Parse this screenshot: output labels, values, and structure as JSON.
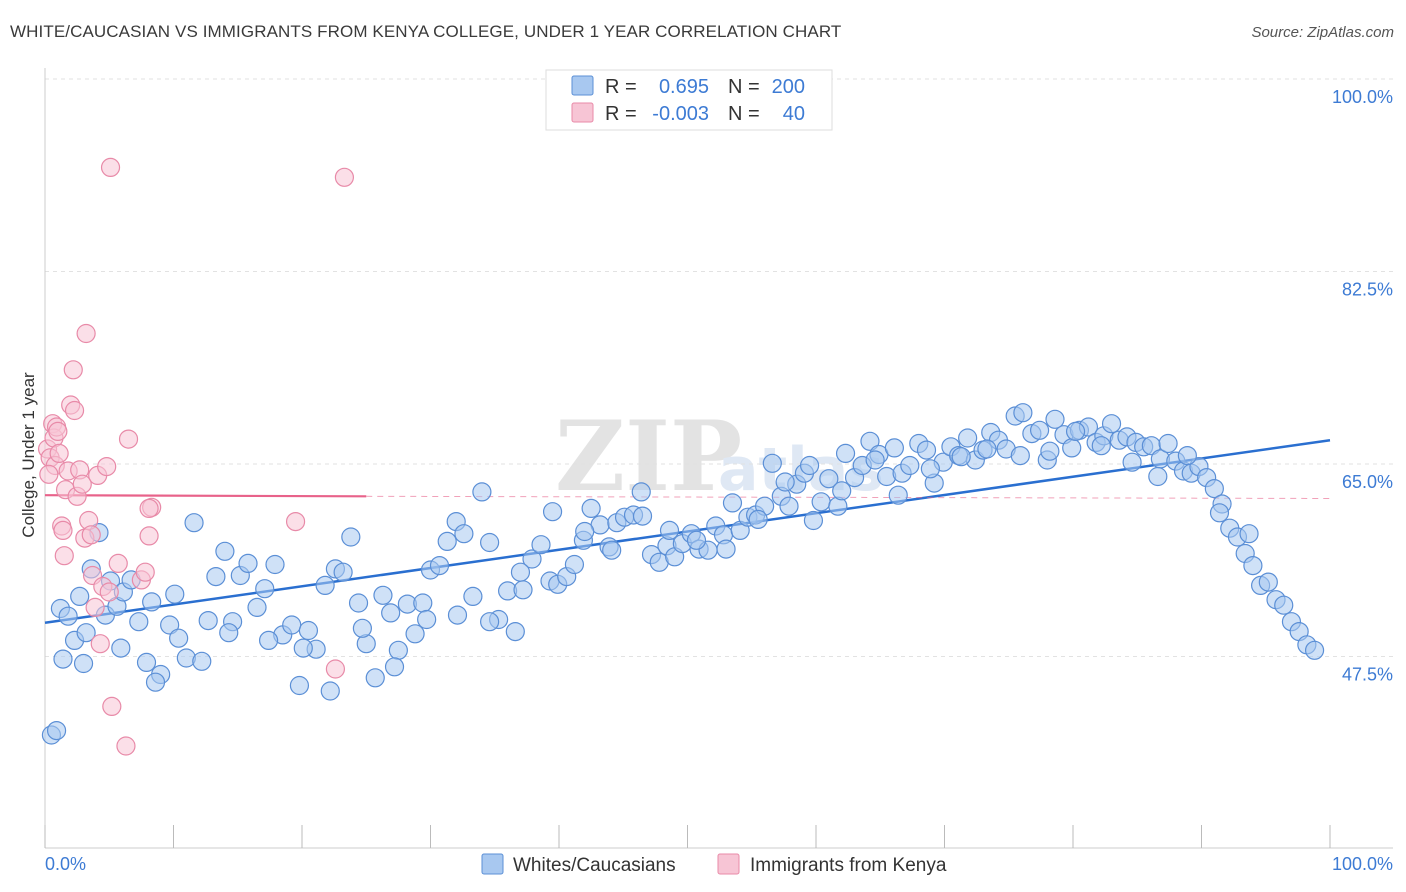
{
  "title": "WHITE/CAUCASIAN VS IMMIGRANTS FROM KENYA COLLEGE, UNDER 1 YEAR CORRELATION CHART",
  "source": "Source: ZipAtlas.com",
  "watermark": {
    "zip": "ZIP",
    "atlas": "atlas"
  },
  "colors": {
    "blue_fill": "#a8c8f0",
    "blue_stroke": "#5b8fd6",
    "blue_line": "#2a6fd0",
    "pink_fill": "#f7c5d5",
    "pink_stroke": "#e88aa8",
    "pink_line": "#e8628a",
    "axis_label": "#3d7bd4",
    "grid": "#e2e2e2"
  },
  "legend": {
    "rows": [
      {
        "r_label": "R =",
        "r_value": "0.695",
        "n_label": "N =",
        "n_value": "200",
        "series": "blue"
      },
      {
        "r_label": "R =",
        "r_value": "-0.003",
        "n_label": "N =",
        "n_value": "40",
        "series": "pink"
      }
    ]
  },
  "bottom_legend": [
    {
      "label": "Whites/Caucasians",
      "series": "blue"
    },
    {
      "label": "Immigrants from Kenya",
      "series": "pink"
    }
  ],
  "chart_data": {
    "type": "scatter",
    "title": "WHITE/CAUCASIAN VS IMMIGRANTS FROM KENYA COLLEGE, UNDER 1 YEAR CORRELATION CHART",
    "xlabel": "",
    "ylabel": "College, Under 1 year",
    "xlim": [
      0,
      100
    ],
    "ylim": [
      31.5,
      102
    ],
    "x_tick_labels": [
      "0.0%",
      "100.0%"
    ],
    "y_ticks": [
      47.5,
      65.0,
      82.5,
      100.0
    ],
    "y_tick_labels": [
      "47.5%",
      "65.0%",
      "82.5%",
      "100.0%"
    ],
    "grid": true,
    "series": [
      {
        "name": "Whites/Caucasians",
        "color": "blue",
        "trend": {
          "x": [
            0,
            100
          ],
          "y": [
            52.2,
            68.8
          ]
        },
        "points": [
          [
            0.5,
            42.0
          ],
          [
            0.9,
            42.4
          ],
          [
            1.2,
            53.5
          ],
          [
            1.8,
            52.8
          ],
          [
            2.3,
            50.6
          ],
          [
            2.7,
            54.6
          ],
          [
            3.2,
            51.3
          ],
          [
            3.6,
            57.1
          ],
          [
            4.2,
            60.4
          ],
          [
            4.7,
            52.9
          ],
          [
            5.1,
            56.0
          ],
          [
            5.6,
            53.7
          ],
          [
            6.1,
            55.0
          ],
          [
            6.7,
            56.1
          ],
          [
            7.3,
            52.3
          ],
          [
            7.9,
            48.6
          ],
          [
            8.3,
            54.1
          ],
          [
            9.0,
            47.5
          ],
          [
            9.7,
            52.0
          ],
          [
            10.4,
            50.8
          ],
          [
            11.0,
            49.0
          ],
          [
            11.6,
            61.3
          ],
          [
            12.2,
            48.7
          ],
          [
            12.7,
            52.4
          ],
          [
            13.3,
            56.4
          ],
          [
            14.0,
            58.7
          ],
          [
            14.6,
            52.3
          ],
          [
            15.2,
            56.5
          ],
          [
            15.8,
            57.6
          ],
          [
            16.5,
            53.6
          ],
          [
            17.1,
            55.3
          ],
          [
            17.9,
            57.5
          ],
          [
            18.5,
            51.1
          ],
          [
            19.2,
            52.0
          ],
          [
            19.8,
            46.5
          ],
          [
            20.5,
            51.5
          ],
          [
            21.1,
            49.8
          ],
          [
            21.8,
            55.6
          ],
          [
            22.6,
            57.1
          ],
          [
            23.2,
            56.8
          ],
          [
            23.8,
            60.0
          ],
          [
            24.4,
            54.0
          ],
          [
            25.0,
            50.3
          ],
          [
            25.7,
            47.2
          ],
          [
            26.3,
            54.7
          ],
          [
            26.9,
            53.1
          ],
          [
            27.5,
            49.7
          ],
          [
            28.2,
            53.9
          ],
          [
            28.8,
            51.2
          ],
          [
            29.4,
            54.0
          ],
          [
            30.0,
            57.0
          ],
          [
            30.7,
            57.4
          ],
          [
            31.3,
            59.6
          ],
          [
            32.0,
            61.4
          ],
          [
            32.6,
            60.3
          ],
          [
            33.3,
            54.6
          ],
          [
            34.0,
            64.1
          ],
          [
            34.6,
            59.5
          ],
          [
            35.3,
            52.5
          ],
          [
            36.0,
            55.1
          ],
          [
            36.6,
            51.4
          ],
          [
            37.2,
            55.2
          ],
          [
            37.9,
            58.0
          ],
          [
            38.6,
            59.3
          ],
          [
            39.3,
            56.0
          ],
          [
            39.9,
            55.7
          ],
          [
            40.6,
            56.4
          ],
          [
            41.2,
            57.5
          ],
          [
            41.9,
            59.7
          ],
          [
            42.5,
            62.6
          ],
          [
            43.2,
            61.1
          ],
          [
            43.9,
            59.1
          ],
          [
            44.5,
            61.3
          ],
          [
            45.1,
            61.8
          ],
          [
            45.8,
            62.0
          ],
          [
            46.5,
            61.9
          ],
          [
            47.2,
            58.4
          ],
          [
            47.8,
            57.7
          ],
          [
            48.4,
            59.2
          ],
          [
            49.0,
            58.2
          ],
          [
            49.6,
            59.4
          ],
          [
            50.3,
            60.3
          ],
          [
            50.9,
            58.9
          ],
          [
            51.6,
            58.8
          ],
          [
            52.2,
            61.0
          ],
          [
            52.8,
            60.2
          ],
          [
            53.5,
            63.1
          ],
          [
            54.1,
            60.6
          ],
          [
            54.7,
            61.8
          ],
          [
            55.3,
            62.0
          ],
          [
            56.0,
            62.8
          ],
          [
            56.6,
            66.7
          ],
          [
            57.3,
            63.7
          ],
          [
            57.9,
            62.8
          ],
          [
            58.5,
            64.8
          ],
          [
            59.1,
            65.8
          ],
          [
            59.8,
            61.5
          ],
          [
            60.4,
            63.2
          ],
          [
            61.0,
            65.3
          ],
          [
            61.7,
            62.8
          ],
          [
            62.3,
            67.6
          ],
          [
            63.0,
            65.4
          ],
          [
            63.6,
            66.5
          ],
          [
            64.2,
            68.7
          ],
          [
            64.9,
            67.5
          ],
          [
            65.5,
            65.5
          ],
          [
            66.1,
            68.1
          ],
          [
            66.7,
            65.8
          ],
          [
            67.3,
            66.5
          ],
          [
            68.0,
            68.5
          ],
          [
            68.6,
            67.9
          ],
          [
            69.2,
            64.9
          ],
          [
            69.9,
            66.8
          ],
          [
            70.5,
            68.2
          ],
          [
            71.1,
            67.4
          ],
          [
            71.8,
            69.0
          ],
          [
            72.4,
            67.0
          ],
          [
            73.0,
            67.9
          ],
          [
            73.6,
            69.5
          ],
          [
            74.2,
            68.8
          ],
          [
            74.8,
            68.0
          ],
          [
            75.5,
            71.0
          ],
          [
            76.1,
            71.3
          ],
          [
            76.8,
            69.4
          ],
          [
            77.4,
            69.7
          ],
          [
            78.0,
            67.0
          ],
          [
            78.6,
            70.7
          ],
          [
            79.3,
            69.3
          ],
          [
            79.9,
            68.1
          ],
          [
            80.5,
            69.7
          ],
          [
            81.2,
            70.0
          ],
          [
            81.8,
            68.6
          ],
          [
            82.4,
            69.2
          ],
          [
            83.0,
            70.3
          ],
          [
            83.6,
            68.8
          ],
          [
            84.2,
            69.1
          ],
          [
            84.9,
            68.6
          ],
          [
            85.5,
            68.2
          ],
          [
            86.1,
            68.3
          ],
          [
            86.8,
            67.1
          ],
          [
            87.4,
            68.5
          ],
          [
            88.0,
            66.9
          ],
          [
            88.6,
            66.0
          ],
          [
            89.2,
            65.8
          ],
          [
            89.8,
            66.4
          ],
          [
            90.4,
            65.4
          ],
          [
            91.0,
            64.4
          ],
          [
            91.6,
            63.0
          ],
          [
            92.2,
            60.8
          ],
          [
            92.8,
            60.0
          ],
          [
            93.4,
            58.5
          ],
          [
            94.0,
            57.4
          ],
          [
            94.6,
            55.6
          ],
          [
            95.2,
            55.9
          ],
          [
            95.8,
            54.3
          ],
          [
            96.4,
            53.8
          ],
          [
            97.0,
            52.3
          ],
          [
            97.6,
            51.4
          ],
          [
            98.2,
            50.2
          ],
          [
            98.8,
            49.7
          ],
          [
            1.4,
            48.9
          ],
          [
            3.0,
            48.5
          ],
          [
            5.9,
            49.9
          ],
          [
            8.6,
            46.8
          ],
          [
            10.1,
            54.8
          ],
          [
            14.3,
            51.3
          ],
          [
            17.4,
            50.6
          ],
          [
            20.1,
            49.9
          ],
          [
            22.2,
            46.0
          ],
          [
            24.7,
            51.7
          ],
          [
            27.2,
            48.2
          ],
          [
            29.7,
            52.5
          ],
          [
            32.1,
            52.9
          ],
          [
            34.6,
            52.3
          ],
          [
            37.0,
            56.8
          ],
          [
            39.5,
            62.3
          ],
          [
            42.0,
            60.5
          ],
          [
            44.1,
            58.8
          ],
          [
            46.4,
            64.1
          ],
          [
            48.6,
            60.6
          ],
          [
            50.7,
            59.7
          ],
          [
            53.0,
            58.9
          ],
          [
            55.5,
            61.6
          ],
          [
            57.6,
            65.0
          ],
          [
            59.5,
            66.5
          ],
          [
            62.0,
            64.2
          ],
          [
            64.6,
            67.0
          ],
          [
            66.4,
            63.8
          ],
          [
            68.9,
            66.2
          ],
          [
            71.3,
            67.3
          ],
          [
            73.3,
            68.0
          ],
          [
            75.9,
            67.4
          ],
          [
            78.2,
            67.8
          ],
          [
            80.2,
            69.6
          ],
          [
            82.2,
            68.3
          ],
          [
            84.6,
            66.8
          ],
          [
            86.6,
            65.5
          ],
          [
            88.9,
            67.4
          ],
          [
            91.4,
            62.2
          ],
          [
            93.7,
            60.3
          ]
        ]
      },
      {
        "name": "Immigrants from Kenya",
        "color": "pink",
        "trend": {
          "x": [
            0,
            25
          ],
          "y": [
            63.8,
            63.7
          ]
        },
        "trend_dashed": {
          "x": [
            25,
            100
          ],
          "y": [
            63.7,
            63.5
          ]
        },
        "points": [
          [
            0.2,
            68.0
          ],
          [
            0.4,
            67.2
          ],
          [
            0.6,
            70.3
          ],
          [
            0.7,
            69.0
          ],
          [
            0.8,
            66.5
          ],
          [
            0.9,
            70.0
          ],
          [
            1.0,
            69.6
          ],
          [
            1.1,
            67.6
          ],
          [
            1.3,
            61.0
          ],
          [
            1.4,
            60.6
          ],
          [
            1.5,
            58.3
          ],
          [
            1.6,
            64.3
          ],
          [
            1.8,
            66.0
          ],
          [
            2.0,
            72.0
          ],
          [
            2.2,
            75.2
          ],
          [
            2.3,
            71.5
          ],
          [
            2.5,
            63.7
          ],
          [
            2.7,
            66.1
          ],
          [
            2.9,
            64.8
          ],
          [
            3.1,
            59.9
          ],
          [
            3.2,
            78.5
          ],
          [
            3.4,
            61.5
          ],
          [
            3.6,
            60.2
          ],
          [
            3.7,
            56.5
          ],
          [
            3.9,
            53.6
          ],
          [
            4.1,
            65.6
          ],
          [
            4.3,
            50.3
          ],
          [
            4.5,
            55.5
          ],
          [
            4.8,
            66.4
          ],
          [
            5.0,
            55.0
          ],
          [
            5.2,
            44.6
          ],
          [
            5.7,
            57.6
          ],
          [
            6.3,
            41.0
          ],
          [
            6.5,
            68.9
          ],
          [
            7.5,
            56.1
          ],
          [
            7.8,
            56.8
          ],
          [
            8.1,
            60.1
          ],
          [
            8.3,
            62.7
          ],
          [
            19.5,
            61.4
          ],
          [
            22.6,
            48.0
          ]
        ],
        "outliers": [
          [
            5.1,
            93.6
          ],
          [
            23.3,
            92.7
          ],
          [
            8.1,
            62.6
          ],
          [
            0.3,
            65.7
          ]
        ]
      }
    ]
  }
}
